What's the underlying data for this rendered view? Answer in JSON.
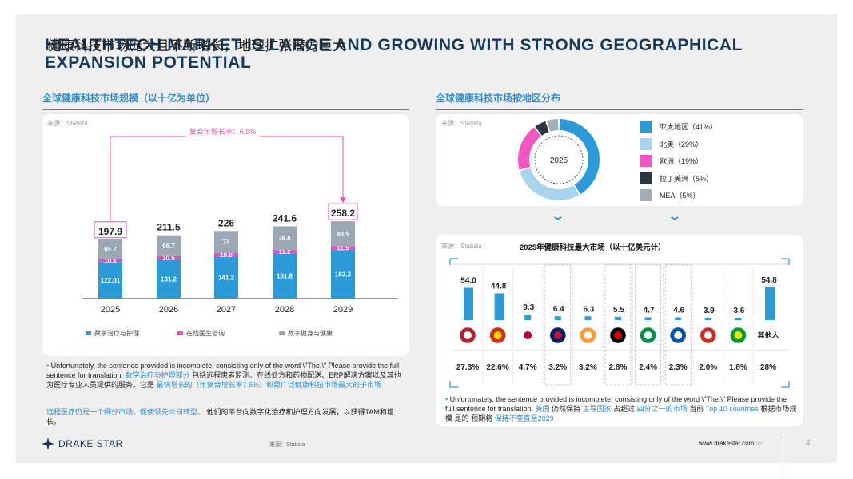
{
  "title": {
    "en": "HEALTHTECH MARKET IS LARGE AND GROWING WITH STRONG GEOGRAPHICAL EXPANSION POTENTIAL",
    "zh": "健康科技市场庞大且不断增长，地理扩张潜力巨大"
  },
  "left": {
    "heading": "全球健康科技市场规模（以十亿为单位）",
    "source": "来源：Statista",
    "cagr": "复合年增长率：6.9%",
    "chart_data": {
      "type": "bar",
      "stacked": true,
      "title": "全球健康科技市场规模（以十亿为单位）",
      "categories": [
        "2025",
        "2026",
        "2027",
        "2028",
        "2029"
      ],
      "series": [
        {
          "name": "数字治疗与护理",
          "color": "#2a9bd8",
          "values": [
            122.01,
            131.2,
            141.2,
            151.8,
            163.3
          ]
        },
        {
          "name": "在线医生咨询",
          "color": "#e94fbf",
          "values": [
            10.1,
            10.5,
            10.8,
            11.2,
            11.5
          ]
        },
        {
          "name": "数字健身与健康",
          "color": "#9aa7b4",
          "values": [
            65.7,
            69.7,
            74.0,
            78.6,
            83.5
          ]
        }
      ],
      "totals": [
        197.9,
        211.5,
        226.0,
        241.6,
        258.2
      ],
      "ylim": [
        0,
        270
      ]
    },
    "note": {
      "bullet": "•",
      "p1a": "Unfortunately, the sentence provided is incomplete, consisting only of the word \\\"The.\\\" Please provide the full sentence for translation.",
      "p1b": "数字治疗与护理部分",
      "p1c": "包括远程患者监测、在线处方和药物配送、ERP解决方案以及其他为医疗专业人员提供的服务。它是",
      "p1d": "最快增长的（年复合增长率7.6%）和更广泛健康科技市场最大的子市场",
      "p2a": "远程医疗仍是一个细分市场，促使领先公司转型。",
      "p2b": "他们的平台向数字化治疗和护理方向发展，以获得TAM和增长。"
    }
  },
  "right": {
    "heading": "全球健康科技市场按地区分布",
    "source": "来源：Statista",
    "donut": {
      "center": "2025",
      "chart_data": {
        "type": "pie",
        "donut": true,
        "labels": [
          "亚太地区（41%）",
          "北美（29%）",
          "欧洲（19%）",
          "拉丁美洲（5%）",
          "MEA（5%）"
        ],
        "values": [
          41,
          29,
          19,
          5,
          5
        ],
        "colors": [
          "#2a9bd8",
          "#a8d4ee",
          "#f256c3",
          "#2b3640",
          "#a4adb6"
        ]
      }
    },
    "top10": {
      "source": "来源：Statista",
      "title": "2025年健康科技最大市场（以十亿美元计）",
      "chart_data": {
        "type": "bar",
        "title": "2025年健康科技最大市场（以十亿美元计）",
        "categories": [
          "US",
          "CN",
          "JP",
          "UK",
          "IN",
          "DE",
          "IT",
          "FR",
          "CA",
          "BR",
          "其他人"
        ],
        "values": [
          54.0,
          44.8,
          9.3,
          6.4,
          6.3,
          5.5,
          4.7,
          4.6,
          3.9,
          3.6,
          54.8
        ],
        "value_labels": [
          "54.0",
          "44.8",
          "9.3",
          "6.4",
          "6.3",
          "5.5",
          "4.7",
          "4.6",
          "3.9",
          "3.6",
          "54.8"
        ],
        "shares": [
          "27.3%",
          "22.6%",
          "4.7%",
          "3.2%",
          "3.2%",
          "2.8%",
          "2.4%",
          "2.3%",
          "2.0%",
          "1.8%",
          "28%"
        ],
        "ylim": [
          0,
          60
        ]
      },
      "others_label": "其他人"
    },
    "note": {
      "bullet": "•",
      "a": "Unfortunately, the sentence provided is incomplete, consisting only of the word \\\"The.\\\" Please provide the full sentence for translation.",
      "b": "美国",
      "c": "仍然保持",
      "d": "主导国家",
      "e": "占超过",
      "f": "四分之一的市场",
      "g": "当前",
      "h": "Top 10 countries",
      "i": "根据市场规模",
      "j": "是的",
      "k": "预期将",
      "l": "保持不变直至2029"
    }
  },
  "footer": {
    "logo": "DRAKE STAR",
    "source": "来源：Statista",
    "url": "www.drakestar.com",
    "url_ghost": "om",
    "page": "4"
  }
}
